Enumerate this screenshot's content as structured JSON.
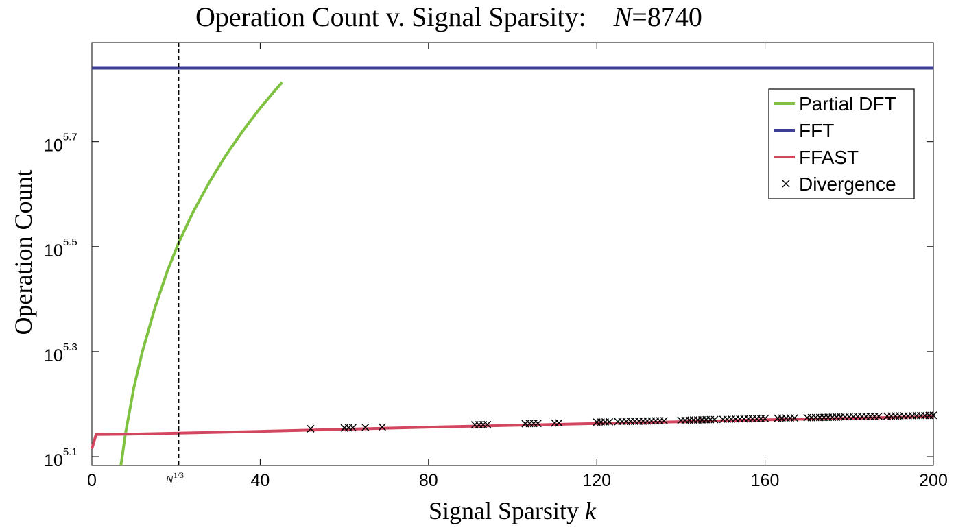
{
  "chart_data": {
    "type": "line",
    "title": "Operation Count v. Signal Sparsity:",
    "title_n_symbol": "N",
    "title_n_value": "=8740",
    "xlabel_text": "Signal Sparsity",
    "xlabel_var": "k",
    "ylabel": "Operation Count",
    "yscale": "log",
    "xlim": [
      0,
      200
    ],
    "ylim_log10": [
      5.083,
      5.889
    ],
    "x_ticks": [
      {
        "value": 0,
        "label": "0"
      },
      {
        "value": 40,
        "label": "40"
      },
      {
        "value": 80,
        "label": "80"
      },
      {
        "value": 120,
        "label": "120"
      },
      {
        "value": 160,
        "label": "160"
      },
      {
        "value": 200,
        "label": "200"
      }
    ],
    "y_ticks": [
      {
        "exp_value": 5.1,
        "base": "10",
        "exp": "5.1"
      },
      {
        "exp_value": 5.3,
        "base": "10",
        "exp": "5.3"
      },
      {
        "exp_value": 5.5,
        "base": "10",
        "exp": "5.5"
      },
      {
        "exp_value": 5.7,
        "base": "10",
        "exp": "5.7"
      }
    ],
    "vline": {
      "x": 20.6,
      "label_base": "N",
      "label_exp": "1/3",
      "style": "dashed"
    },
    "series": [
      {
        "name": "Partial DFT",
        "color": "#7fc241",
        "x": [
          6.9,
          8,
          10,
          12,
          15,
          18,
          20.6,
          24,
          28,
          32,
          36,
          40,
          44,
          45.2
        ],
        "log10_y": [
          5.083,
          5.145,
          5.232,
          5.3,
          5.384,
          5.455,
          5.507,
          5.565,
          5.624,
          5.676,
          5.722,
          5.764,
          5.802,
          5.813
        ]
      },
      {
        "name": "FFT",
        "color": "#3e3e95",
        "x": [
          0,
          200
        ],
        "log10_y": [
          5.84,
          5.84
        ]
      },
      {
        "name": "FFAST",
        "color": "#d2475f",
        "x": [
          0,
          1,
          10,
          40,
          80,
          120,
          160,
          200
        ],
        "log10_y": [
          5.115,
          5.142,
          5.143,
          5.148,
          5.156,
          5.163,
          5.17,
          5.176
        ]
      }
    ],
    "divergence": {
      "name": "Divergence",
      "marker": "x",
      "color": "#000000",
      "x": [
        52,
        60,
        61,
        62,
        65,
        69,
        91,
        92,
        93,
        94,
        103,
        104,
        105,
        106,
        110,
        111,
        120,
        121,
        122,
        123,
        125,
        126,
        127,
        128,
        129,
        130,
        131,
        132,
        133,
        134,
        135,
        136,
        140,
        141,
        142,
        143,
        144,
        145,
        146,
        147,
        148,
        150,
        151,
        152,
        153,
        154,
        155,
        156,
        157,
        158,
        159,
        160,
        163,
        164,
        165,
        166,
        167,
        170,
        171,
        172,
        173,
        174,
        175,
        176,
        177,
        178,
        179,
        180,
        181,
        182,
        183,
        184,
        185,
        186,
        187,
        189,
        190,
        191,
        192,
        193,
        194,
        195,
        196,
        197,
        198,
        199,
        200
      ]
    },
    "legend_position": "top-right"
  }
}
